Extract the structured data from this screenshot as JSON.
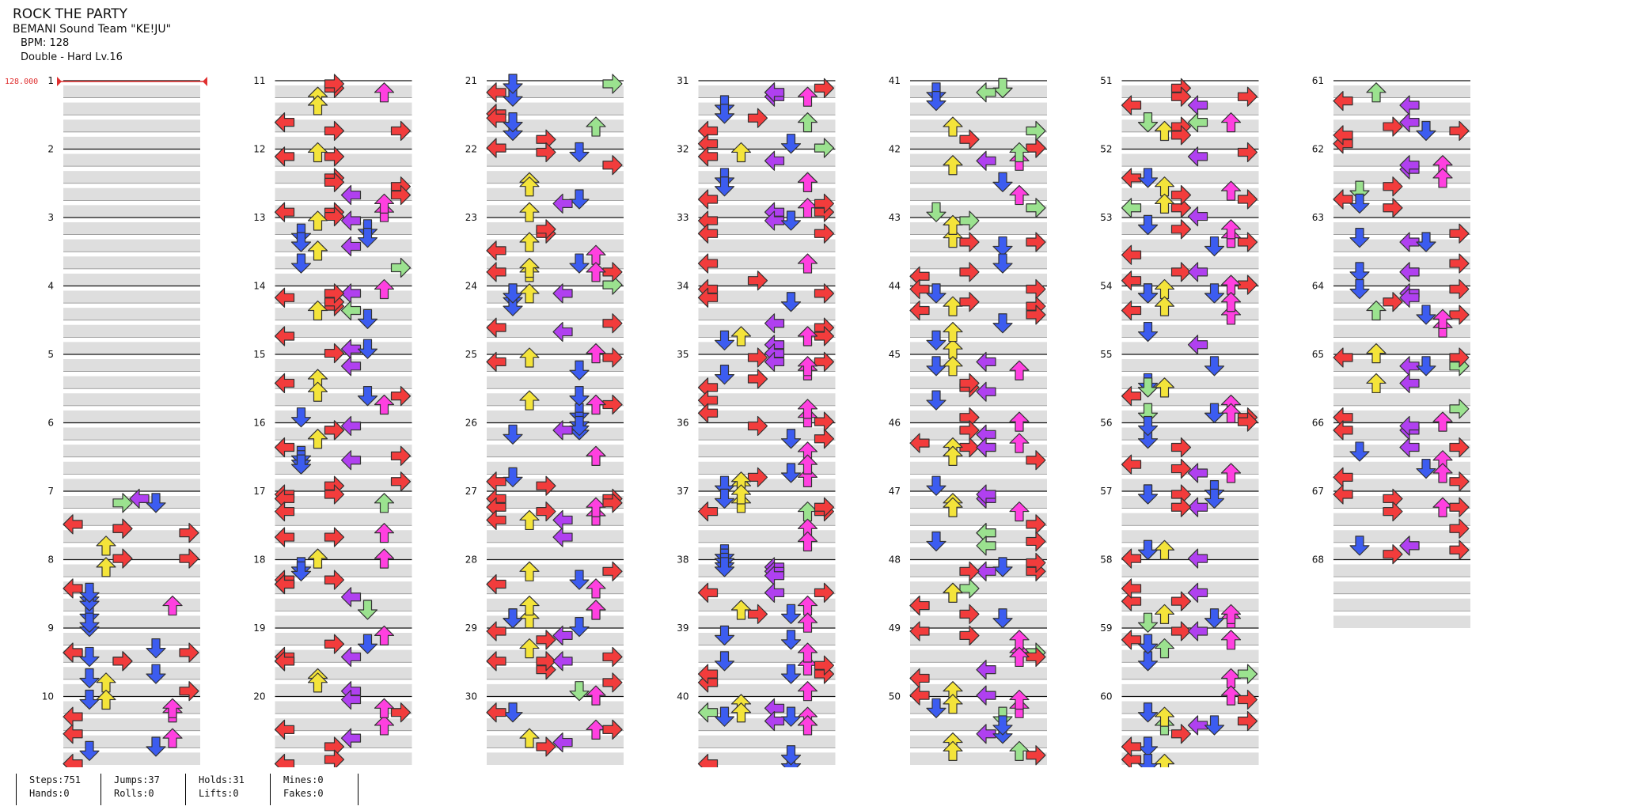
{
  "song": {
    "title": "ROCK THE PARTY",
    "artist": "BEMANI Sound Team \"KE!JU\"",
    "bpm": "BPM: 128",
    "difficulty": "Double - Hard Lv.16"
  },
  "bpm_marker": "128.000",
  "measures": {
    "first": 1,
    "last": 68,
    "per_column": 10
  },
  "stats": [
    {
      "line1": "Steps:751",
      "line2": "Hands:0"
    },
    {
      "line1": "Jumps:37",
      "line2": "Rolls:0"
    },
    {
      "line1": "Holds:31",
      "line2": "Lifts:0"
    },
    {
      "line1": "Mines:0",
      "line2": "Fakes:0"
    }
  ],
  "colors": {
    "background": "#ffffff",
    "row_stripe": "#dedede",
    "measure_line": "#111111",
    "beat_line": "#888888",
    "bpm_marker": "#e03030",
    "arrow_left_red": "#f23c3c",
    "arrow_left_blue": "#3c5cf0",
    "arrow_up_yellow": "#f4e43a",
    "arrow_right_purple": "#b040f0",
    "arrow_right_magenta": "#ff40e0",
    "arrow_hold_green": "#9be28f"
  }
}
